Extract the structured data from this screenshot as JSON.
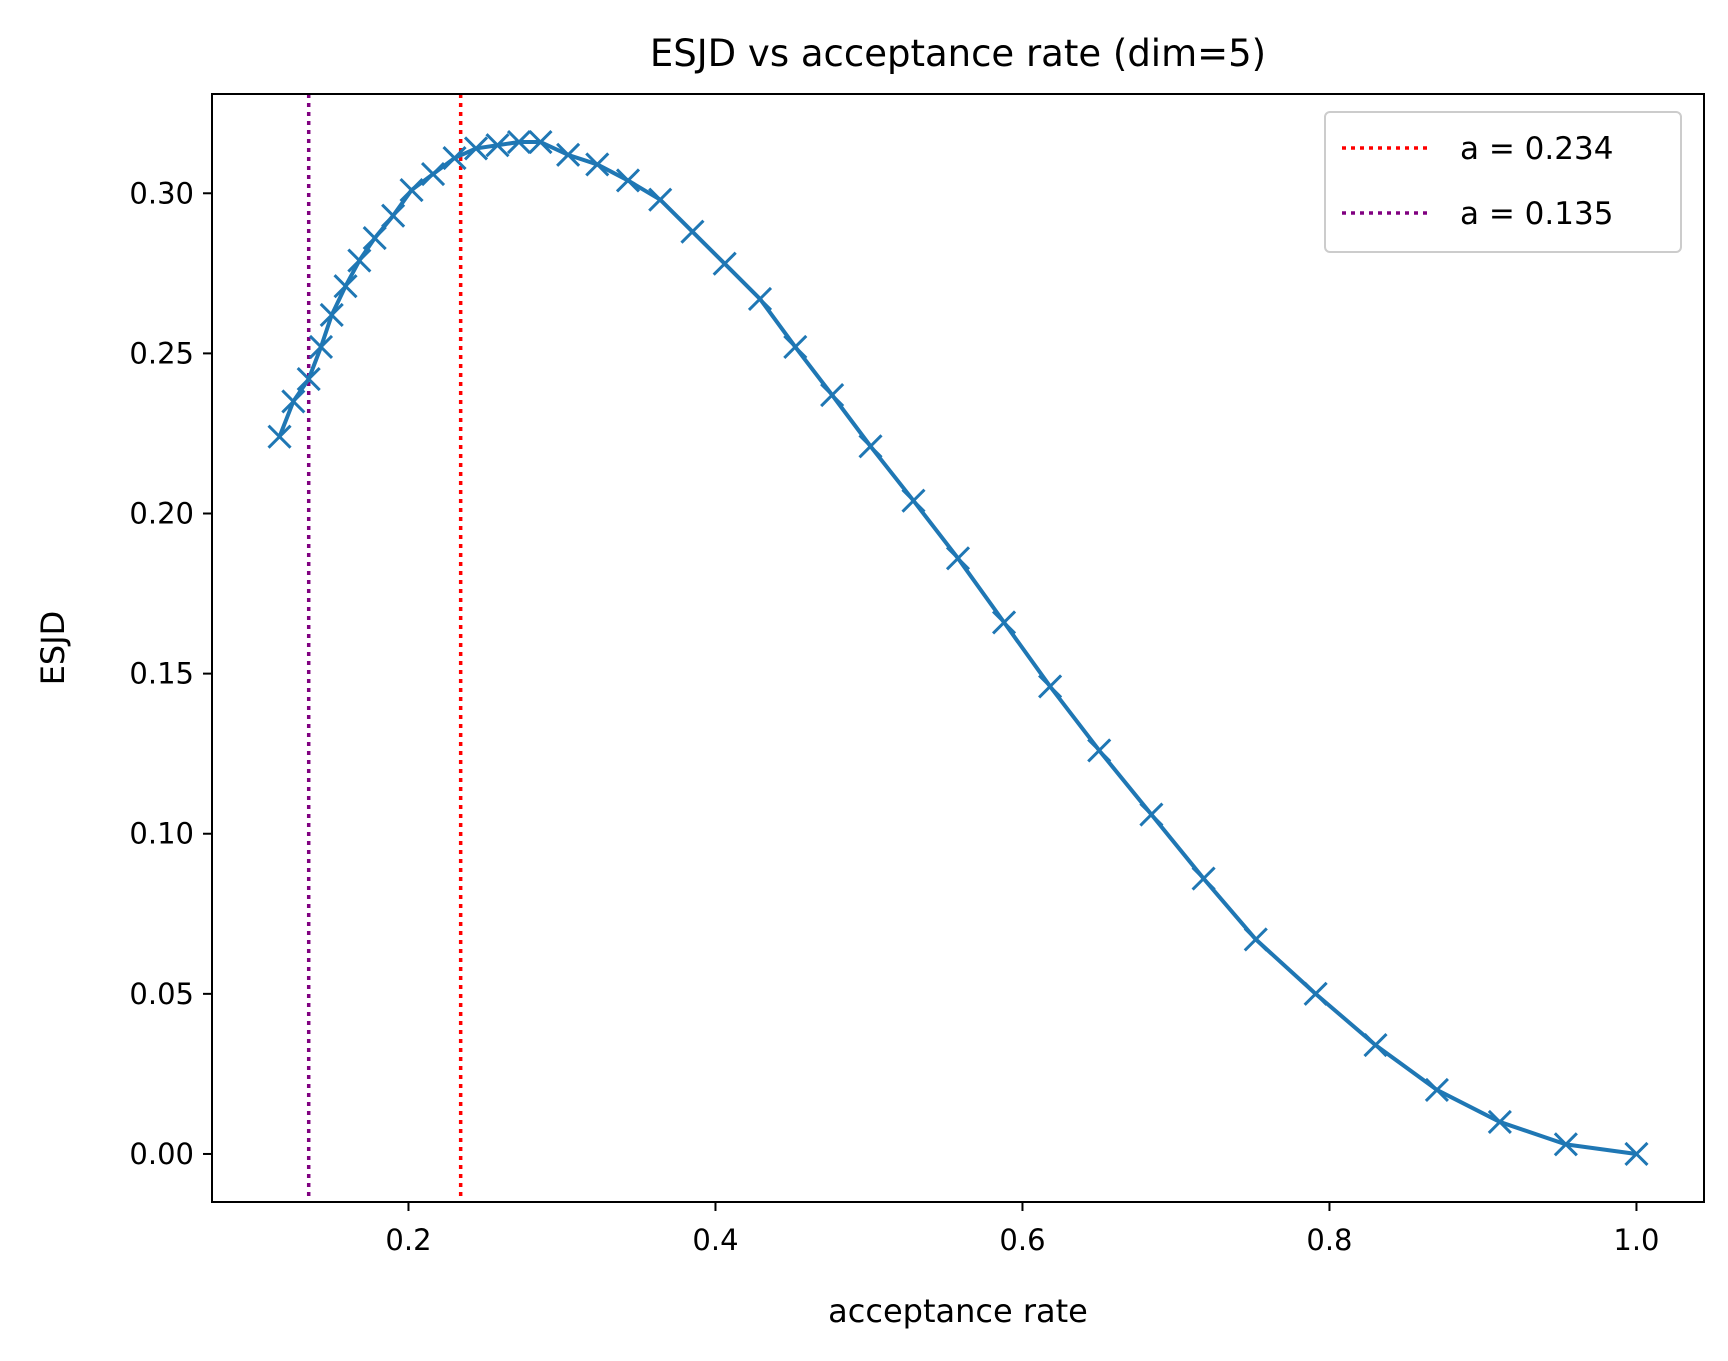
{
  "chart_data": {
    "type": "line",
    "title": "ESJD vs acceptance rate (dim=5)",
    "xlabel": "acceptance rate",
    "ylabel": "ESJD",
    "xlim": [
      0.072,
      1.044
    ],
    "ylim": [
      -0.015,
      0.331
    ],
    "xticks": [
      0.2,
      0.4,
      0.6,
      0.8,
      1.0
    ],
    "xtick_labels": [
      "0.2",
      "0.4",
      "0.6",
      "0.8",
      "1.0"
    ],
    "yticks": [
      0.0,
      0.05,
      0.1,
      0.15,
      0.2,
      0.25,
      0.3
    ],
    "ytick_labels": [
      "0.00",
      "0.05",
      "0.10",
      "0.15",
      "0.20",
      "0.25",
      "0.30"
    ],
    "grid": false,
    "legend_position": "top-right",
    "series": [
      {
        "marker": "x",
        "color": "#1f77b4",
        "x": [
          0.116,
          0.125,
          0.135,
          0.143,
          0.15,
          0.159,
          0.168,
          0.178,
          0.19,
          0.202,
          0.216,
          0.23,
          0.244,
          0.258,
          0.272,
          0.286,
          0.304,
          0.323,
          0.343,
          0.364,
          0.385,
          0.406,
          0.429,
          0.452,
          0.476,
          0.501,
          0.529,
          0.558,
          0.588,
          0.618,
          0.65,
          0.684,
          0.718,
          0.752,
          0.791,
          0.83,
          0.87,
          0.911,
          0.954,
          1.0
        ],
        "y": [
          0.224,
          0.235,
          0.242,
          0.252,
          0.262,
          0.271,
          0.279,
          0.286,
          0.293,
          0.301,
          0.306,
          0.311,
          0.314,
          0.315,
          0.316,
          0.316,
          0.312,
          0.309,
          0.304,
          0.298,
          0.288,
          0.278,
          0.267,
          0.252,
          0.237,
          0.221,
          0.204,
          0.186,
          0.166,
          0.146,
          0.126,
          0.106,
          0.086,
          0.067,
          0.05,
          0.034,
          0.02,
          0.01,
          0.003,
          0.0
        ]
      }
    ],
    "vlines": [
      {
        "x": 0.234,
        "label": "a = 0.234",
        "color": "#ff0000"
      },
      {
        "x": 0.135,
        "label": "a = 0.135",
        "color": "#800080"
      }
    ]
  }
}
